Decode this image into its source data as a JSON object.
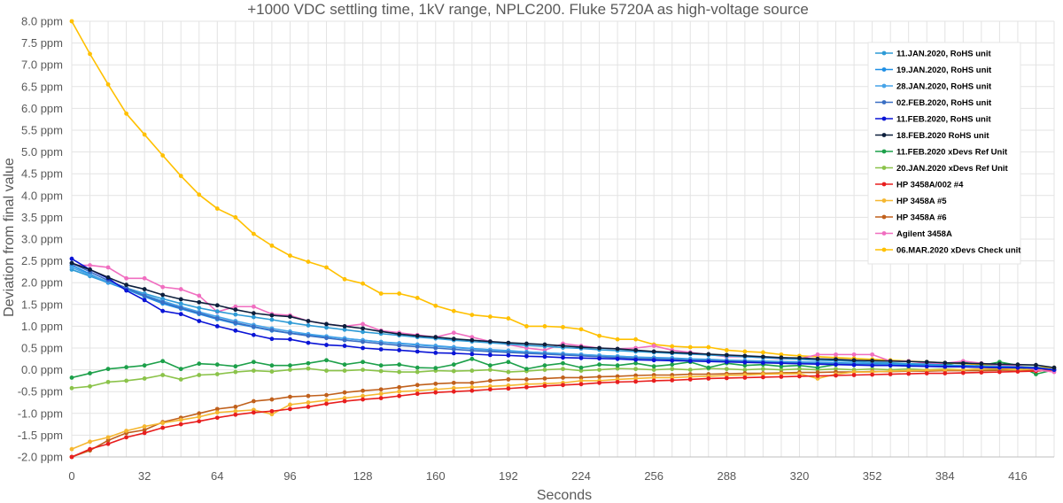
{
  "chart_data": {
    "type": "line",
    "title": "+1000 VDC settling time, 1kV range, NPLC200. Fluke 5720A as high-voltage source",
    "xlabel": "Seconds",
    "ylabel": "Deviation from final value",
    "xlim": [
      0,
      432
    ],
    "ylim": [
      -2.0,
      8.0
    ],
    "x_ticks": [
      0,
      32,
      64,
      96,
      128,
      160,
      192,
      224,
      256,
      288,
      320,
      352,
      384,
      416
    ],
    "x_tick_labels": [
      "0",
      "32",
      "64",
      "96",
      "128",
      "160",
      "192",
      "224",
      "256",
      "288",
      "320",
      "352",
      "384",
      "416"
    ],
    "y_ticks": [
      -2.0,
      -1.5,
      -1.0,
      -0.5,
      0.0,
      0.5,
      1.0,
      1.5,
      2.0,
      2.5,
      3.0,
      3.5,
      4.0,
      4.5,
      5.0,
      5.5,
      6.0,
      6.5,
      7.0,
      7.5,
      8.0
    ],
    "y_tick_labels": [
      "-2.0 ppm",
      "-1.5 ppm",
      "-1.0 ppm",
      "-0.5 ppm",
      "0.0 ppm",
      "0.5 ppm",
      "1.0 ppm",
      "1.5 ppm",
      "2.0 ppm",
      "2.5 ppm",
      "3.0 ppm",
      "3.5 ppm",
      "4.0 ppm",
      "4.5 ppm",
      "5.0 ppm",
      "5.5 ppm",
      "6.0 ppm",
      "6.5 ppm",
      "7.0 ppm",
      "7.5 ppm",
      "8.0 ppm"
    ],
    "grid": true,
    "legend_position": "top-right",
    "x_step": 8,
    "series": [
      {
        "name": "11.JAN.2020, RoHS unit",
        "color": "#2E9BD6",
        "values": [
          2.3,
          2.15,
          2.0,
          1.88,
          1.75,
          1.63,
          1.52,
          1.42,
          1.34,
          1.27,
          1.21,
          1.15,
          1.08,
          1.02,
          0.97,
          0.92,
          0.87,
          0.83,
          0.79,
          0.75,
          0.72,
          0.68,
          0.65,
          0.62,
          0.59,
          0.56,
          0.54,
          0.51,
          0.49,
          0.46,
          0.44,
          0.42,
          0.4,
          0.38,
          0.36,
          0.34,
          0.32,
          0.3,
          0.28,
          0.26,
          0.24,
          0.22,
          0.21,
          0.19,
          0.17,
          0.16,
          0.14,
          0.13,
          0.11,
          0.1,
          0.09,
          0.08,
          0.07,
          0.06,
          0.0
        ]
      },
      {
        "name": "19.JAN.2020, RoHS unit",
        "color": "#1F8FE5",
        "values": [
          2.4,
          2.2,
          2.0,
          1.85,
          1.68,
          1.52,
          1.4,
          1.28,
          1.16,
          1.06,
          0.98,
          0.9,
          0.84,
          0.8,
          0.76,
          0.72,
          0.68,
          0.64,
          0.61,
          0.58,
          0.55,
          0.52,
          0.49,
          0.46,
          0.44,
          0.41,
          0.39,
          0.37,
          0.35,
          0.33,
          0.31,
          0.29,
          0.28,
          0.27,
          0.25,
          0.24,
          0.22,
          0.21,
          0.2,
          0.19,
          0.18,
          0.17,
          0.16,
          0.15,
          0.14,
          0.13,
          0.12,
          0.11,
          0.1,
          0.09,
          0.08,
          0.07,
          0.06,
          0.05,
          0.0
        ]
      },
      {
        "name": "28.JAN.2020, RoHS unit",
        "color": "#47A4E8",
        "values": [
          2.35,
          2.18,
          2.02,
          1.87,
          1.72,
          1.58,
          1.45,
          1.33,
          1.22,
          1.12,
          1.03,
          0.95,
          0.88,
          0.82,
          0.77,
          0.72,
          0.68,
          0.64,
          0.6,
          0.57,
          0.54,
          0.51,
          0.48,
          0.45,
          0.43,
          0.41,
          0.39,
          0.37,
          0.35,
          0.33,
          0.31,
          0.29,
          0.27,
          0.26,
          0.24,
          0.23,
          0.21,
          0.2,
          0.19,
          0.18,
          0.16,
          0.15,
          0.14,
          0.13,
          0.12,
          0.11,
          0.1,
          0.09,
          0.08,
          0.08,
          0.07,
          0.06,
          0.05,
          0.04,
          0.0
        ]
      },
      {
        "name": "02.FEB.2020, RoHS unit",
        "color": "#3A6FC4",
        "values": [
          2.45,
          2.25,
          2.05,
          1.88,
          1.7,
          1.55,
          1.42,
          1.3,
          1.18,
          1.08,
          0.99,
          0.91,
          0.84,
          0.78,
          0.73,
          0.68,
          0.64,
          0.6,
          0.56,
          0.53,
          0.5,
          0.47,
          0.44,
          0.42,
          0.4,
          0.38,
          0.36,
          0.34,
          0.32,
          0.3,
          0.28,
          0.26,
          0.25,
          0.24,
          0.22,
          0.21,
          0.2,
          0.19,
          0.17,
          0.16,
          0.15,
          0.14,
          0.13,
          0.12,
          0.11,
          0.1,
          0.09,
          0.08,
          0.08,
          0.07,
          0.06,
          0.05,
          0.05,
          0.04,
          0.0
        ]
      },
      {
        "name": "11.FEB.2020, RoHS unit",
        "color": "#0A14D6",
        "values": [
          2.55,
          2.3,
          2.1,
          1.82,
          1.6,
          1.35,
          1.28,
          1.12,
          1.0,
          0.9,
          0.8,
          0.71,
          0.7,
          0.62,
          0.57,
          0.55,
          0.5,
          0.47,
          0.45,
          0.42,
          0.39,
          0.38,
          0.36,
          0.34,
          0.33,
          0.31,
          0.3,
          0.28,
          0.27,
          0.26,
          0.25,
          0.23,
          0.22,
          0.21,
          0.2,
          0.19,
          0.18,
          0.17,
          0.16,
          0.15,
          0.14,
          0.13,
          0.12,
          0.11,
          0.1,
          0.1,
          0.09,
          0.08,
          0.07,
          0.07,
          0.06,
          0.05,
          0.05,
          0.04,
          0.0
        ]
      },
      {
        "name": "18.FEB.2020 RoHS unit",
        "color": "#0D1F3C",
        "values": [
          2.45,
          2.3,
          2.12,
          1.95,
          1.85,
          1.72,
          1.62,
          1.55,
          1.48,
          1.38,
          1.3,
          1.25,
          1.22,
          1.12,
          1.05,
          1.0,
          0.95,
          0.88,
          0.82,
          0.78,
          0.75,
          0.71,
          0.68,
          0.65,
          0.62,
          0.6,
          0.58,
          0.55,
          0.52,
          0.5,
          0.48,
          0.45,
          0.42,
          0.4,
          0.38,
          0.36,
          0.34,
          0.32,
          0.3,
          0.28,
          0.27,
          0.25,
          0.24,
          0.22,
          0.21,
          0.2,
          0.19,
          0.18,
          0.16,
          0.15,
          0.14,
          0.13,
          0.12,
          0.11,
          0.05
        ]
      },
      {
        "name": "11.FEB.2020 xDevs Ref Unit",
        "color": "#1DA04A",
        "values": [
          -0.18,
          -0.08,
          0.02,
          0.06,
          0.1,
          0.2,
          0.02,
          0.14,
          0.12,
          0.08,
          0.18,
          0.1,
          0.1,
          0.15,
          0.22,
          0.12,
          0.18,
          0.1,
          0.12,
          0.05,
          0.04,
          0.12,
          0.25,
          0.1,
          0.18,
          0.02,
          0.1,
          0.15,
          0.05,
          0.12,
          0.1,
          0.15,
          0.08,
          0.12,
          0.18,
          0.05,
          0.15,
          0.1,
          0.12,
          0.08,
          0.1,
          0.05,
          0.12,
          0.15,
          0.1,
          0.12,
          0.08,
          0.1,
          0.12,
          0.18,
          0.1,
          0.18,
          0.1,
          -0.1,
          0.0
        ]
      },
      {
        "name": "20.JAN.2020 xDevs Ref Unit",
        "color": "#8BC34A",
        "values": [
          -0.42,
          -0.38,
          -0.28,
          -0.25,
          -0.2,
          -0.12,
          -0.22,
          -0.12,
          -0.1,
          -0.05,
          -0.02,
          -0.04,
          0.0,
          0.03,
          -0.02,
          -0.02,
          0.0,
          -0.03,
          -0.05,
          -0.05,
          -0.02,
          -0.03,
          -0.02,
          0.0,
          -0.05,
          -0.03,
          0.0,
          0.02,
          -0.02,
          0.0,
          0.03,
          0.02,
          0.0,
          0.02,
          0.0,
          0.03,
          0.02,
          0.0,
          0.02,
          0.0,
          0.02,
          0.0,
          0.02,
          0.0,
          0.02,
          0.0,
          0.02,
          0.0,
          0.02,
          0.0,
          0.02,
          0.0,
          0.02,
          0.0,
          0.0
        ]
      },
      {
        "name": "HP 3458A/002 #4",
        "color": "#E81E1E",
        "values": [
          -2.0,
          -1.82,
          -1.7,
          -1.55,
          -1.45,
          -1.33,
          -1.25,
          -1.18,
          -1.1,
          -1.03,
          -0.98,
          -0.95,
          -0.9,
          -0.85,
          -0.78,
          -0.72,
          -0.68,
          -0.65,
          -0.6,
          -0.55,
          -0.52,
          -0.5,
          -0.48,
          -0.45,
          -0.43,
          -0.4,
          -0.37,
          -0.35,
          -0.33,
          -0.3,
          -0.28,
          -0.27,
          -0.25,
          -0.24,
          -0.22,
          -0.2,
          -0.19,
          -0.18,
          -0.17,
          -0.16,
          -0.15,
          -0.14,
          -0.13,
          -0.12,
          -0.11,
          -0.1,
          -0.09,
          -0.08,
          -0.08,
          -0.07,
          -0.06,
          -0.05,
          -0.04,
          -0.03,
          0.0
        ]
      },
      {
        "name": "HP 3458A #5",
        "color": "#F5B731",
        "values": [
          -1.82,
          -1.65,
          -1.55,
          -1.4,
          -1.3,
          -1.22,
          -1.15,
          -1.08,
          -0.98,
          -0.95,
          -0.92,
          -1.02,
          -0.8,
          -0.75,
          -0.7,
          -0.65,
          -0.6,
          -0.55,
          -0.5,
          -0.48,
          -0.45,
          -0.42,
          -0.4,
          -0.38,
          -0.36,
          -0.33,
          -0.32,
          -0.3,
          -0.25,
          -0.25,
          -0.22,
          -0.2,
          -0.18,
          -0.18,
          -0.16,
          -0.15,
          -0.13,
          -0.12,
          -0.1,
          -0.09,
          -0.09,
          -0.2,
          -0.1,
          -0.05,
          -0.05,
          -0.03,
          -0.02,
          -0.01,
          0.0,
          0.0,
          0.02,
          0.03,
          0.0,
          0.02,
          0.0
        ]
      },
      {
        "name": "HP 3458A #6",
        "color": "#C0601C",
        "values": [
          -2.0,
          -1.85,
          -1.62,
          -1.45,
          -1.38,
          -1.2,
          -1.1,
          -1.0,
          -0.9,
          -0.85,
          -0.72,
          -0.68,
          -0.62,
          -0.6,
          -0.58,
          -0.52,
          -0.48,
          -0.45,
          -0.4,
          -0.35,
          -0.32,
          -0.3,
          -0.3,
          -0.25,
          -0.22,
          -0.22,
          -0.2,
          -0.18,
          -0.18,
          -0.16,
          -0.15,
          -0.13,
          -0.12,
          -0.12,
          -0.1,
          -0.1,
          -0.09,
          -0.08,
          -0.08,
          -0.07,
          -0.06,
          -0.06,
          -0.05,
          -0.05,
          -0.04,
          -0.04,
          -0.03,
          -0.03,
          -0.02,
          -0.02,
          -0.02,
          -0.01,
          -0.01,
          0.0,
          0.0
        ]
      },
      {
        "name": "Agilent 3458A",
        "color": "#F06EC0",
        "values": [
          2.4,
          2.4,
          2.35,
          2.1,
          2.1,
          1.9,
          1.85,
          1.7,
          1.33,
          1.45,
          1.45,
          1.28,
          1.25,
          1.12,
          1.05,
          1.0,
          1.05,
          0.9,
          0.85,
          0.8,
          0.75,
          0.85,
          0.75,
          0.65,
          0.58,
          0.5,
          0.45,
          0.6,
          0.55,
          0.5,
          0.48,
          0.5,
          0.55,
          0.45,
          0.4,
          0.35,
          0.3,
          0.3,
          0.28,
          0.25,
          0.25,
          0.35,
          0.35,
          0.35,
          0.35,
          0.2,
          0.2,
          0.15,
          0.15,
          0.2,
          0.15,
          0.1,
          0.1,
          0.0,
          -0.05
        ]
      },
      {
        "name": "06.MAR.2020 xDevs Check unit",
        "color": "#FFC000",
        "values": [
          8.0,
          7.25,
          6.55,
          5.88,
          5.4,
          4.92,
          4.45,
          4.02,
          3.7,
          3.5,
          3.12,
          2.85,
          2.62,
          2.48,
          2.35,
          2.08,
          1.98,
          1.75,
          1.75,
          1.65,
          1.47,
          1.35,
          1.26,
          1.22,
          1.18,
          1.0,
          1.0,
          0.98,
          0.93,
          0.78,
          0.7,
          0.7,
          0.58,
          0.54,
          0.52,
          0.52,
          0.45,
          0.42,
          0.4,
          0.35,
          0.32,
          0.3,
          0.28,
          0.26,
          0.24,
          0.22,
          0.2,
          0.18,
          0.16,
          0.14,
          0.12,
          0.1,
          0.08,
          0.06,
          0.05
        ]
      }
    ]
  }
}
